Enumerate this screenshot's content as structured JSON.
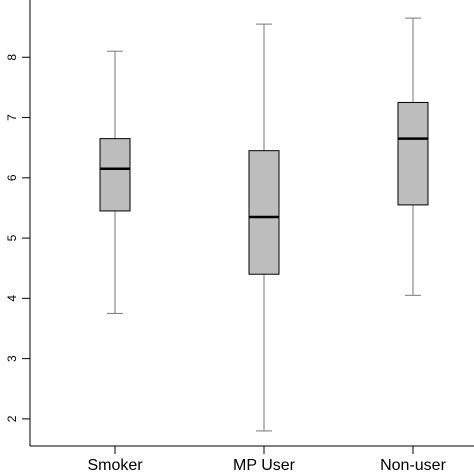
{
  "chart_data": {
    "type": "box",
    "categories": [
      "Smoker",
      "MP User",
      "Non-user"
    ],
    "series": [
      {
        "category": "Smoker",
        "min": 3.75,
        "q1": 5.45,
        "median": 6.15,
        "q3": 6.65,
        "max": 8.1
      },
      {
        "category": "MP User",
        "min": 1.8,
        "q1": 4.4,
        "median": 5.35,
        "q3": 6.45,
        "max": 8.55
      },
      {
        "category": "Non-user",
        "min": 4.05,
        "q1": 5.55,
        "median": 6.65,
        "q3": 7.25,
        "max": 8.65
      }
    ],
    "y_ticks": [
      2,
      3,
      4,
      5,
      6,
      7,
      8
    ],
    "ylim": [
      1.55,
      8.95
    ],
    "grid": false,
    "colors": {
      "box_fill": "#bdbdbd",
      "whisker": "#777777",
      "median": "#000000"
    }
  }
}
